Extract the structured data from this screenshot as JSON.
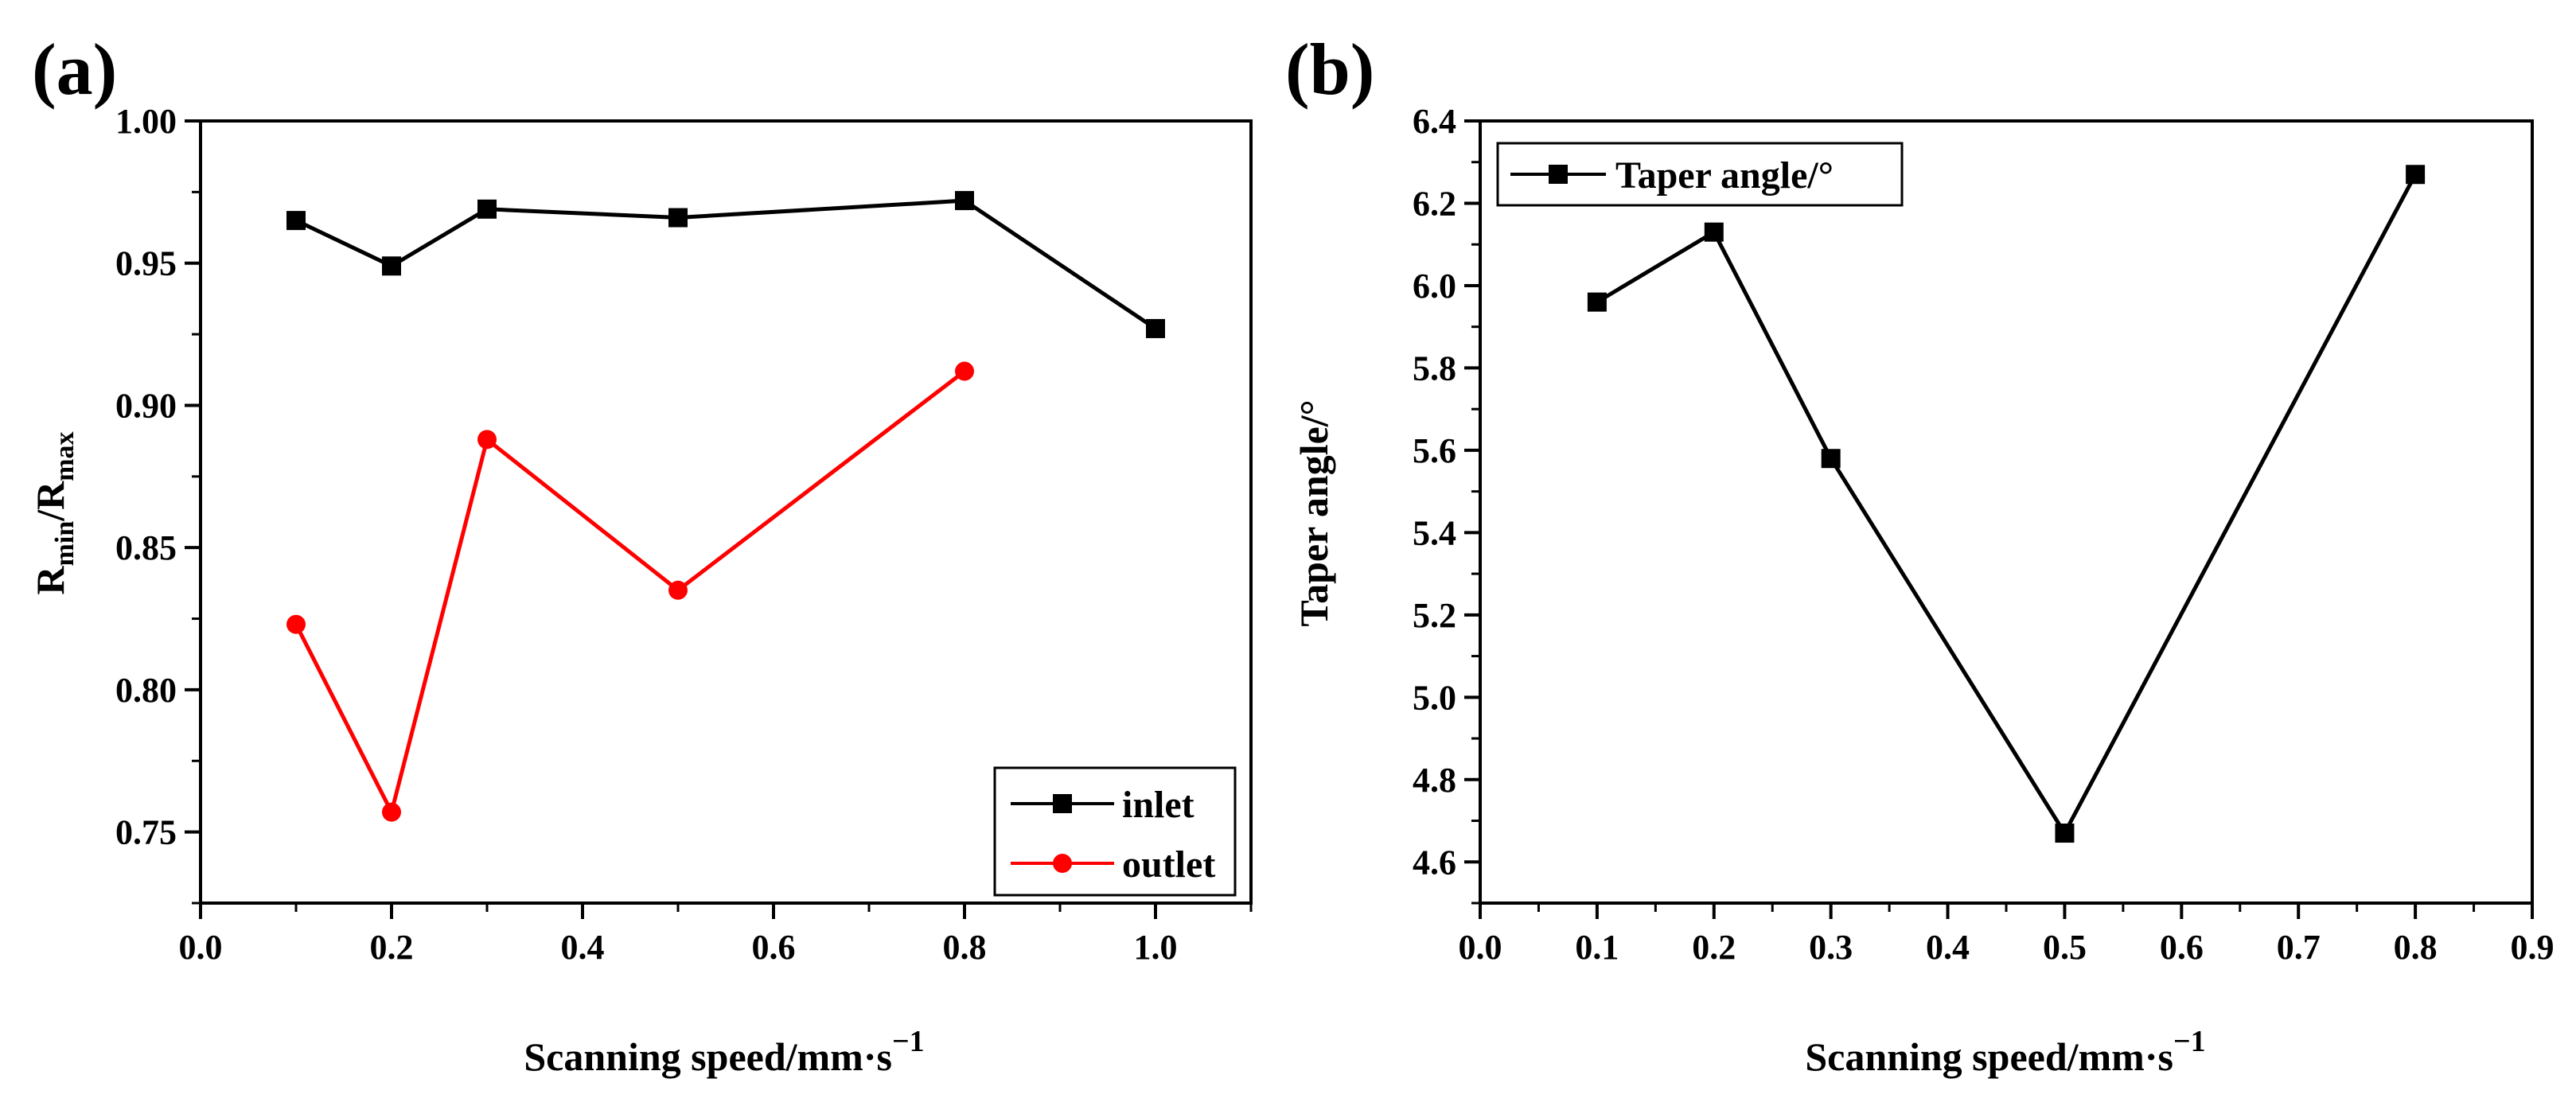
{
  "chart_data": [
    {
      "panel": "(a)",
      "type": "line",
      "xlabel": "Scanning speed/mm",
      "xlabel_dot": "·",
      "xlabel_unit": "s",
      "xlabel_exp": "−1",
      "ylabel_main": "R",
      "ylabel_sub1": "min",
      "ylabel_sep": "/R",
      "ylabel_sub2": "max",
      "xlim": [
        0.0,
        1.1
      ],
      "ylim": [
        0.725,
        1.0
      ],
      "xticks": [
        0.0,
        0.2,
        0.4,
        0.6,
        0.8,
        1.0
      ],
      "xtick_labels": [
        "0.0",
        "0.2",
        "0.4",
        "0.6",
        "0.8",
        "1.0"
      ],
      "yticks": [
        0.75,
        0.8,
        0.85,
        0.9,
        0.95,
        1.0
      ],
      "ytick_labels": [
        "0.75",
        "0.80",
        "0.85",
        "0.90",
        "0.95",
        "1.00"
      ],
      "legend_position": "bottom-right",
      "series": [
        {
          "name": "inlet",
          "color": "#000000",
          "marker": "square",
          "x": [
            0.1,
            0.2,
            0.3,
            0.5,
            0.8,
            1.0
          ],
          "y": [
            0.965,
            0.949,
            0.969,
            0.966,
            0.972,
            0.927
          ]
        },
        {
          "name": "outlet",
          "color": "#ff0000",
          "marker": "circle",
          "x": [
            0.1,
            0.2,
            0.3,
            0.5,
            0.8
          ],
          "y": [
            0.823,
            0.757,
            0.888,
            0.835,
            0.912
          ]
        }
      ]
    },
    {
      "panel": "(b)",
      "type": "line",
      "xlabel": "Scanning speed/mm",
      "xlabel_dot": "·",
      "xlabel_unit": "s",
      "xlabel_exp": "−1",
      "ylabel": "Taper angle/°",
      "xlim": [
        0.0,
        0.9
      ],
      "ylim": [
        4.5,
        6.4
      ],
      "xticks": [
        0.0,
        0.1,
        0.2,
        0.3,
        0.4,
        0.5,
        0.6,
        0.7,
        0.8,
        0.9
      ],
      "xtick_labels": [
        "0.0",
        "0.1",
        "0.2",
        "0.3",
        "0.4",
        "0.5",
        "0.6",
        "0.7",
        "0.8",
        "0.9"
      ],
      "yticks": [
        4.6,
        4.8,
        5.0,
        5.2,
        5.4,
        5.6,
        5.8,
        6.0,
        6.2,
        6.4
      ],
      "ytick_labels": [
        "4.6",
        "4.8",
        "5.0",
        "5.2",
        "5.4",
        "5.6",
        "5.8",
        "6.0",
        "6.2",
        "6.4"
      ],
      "legend_position": "top-left",
      "series": [
        {
          "name": "Taper angle/°",
          "color": "#000000",
          "marker": "square",
          "x": [
            0.1,
            0.2,
            0.3,
            0.5,
            0.8
          ],
          "y": [
            5.96,
            6.13,
            5.58,
            4.67,
            6.27
          ]
        }
      ]
    }
  ]
}
